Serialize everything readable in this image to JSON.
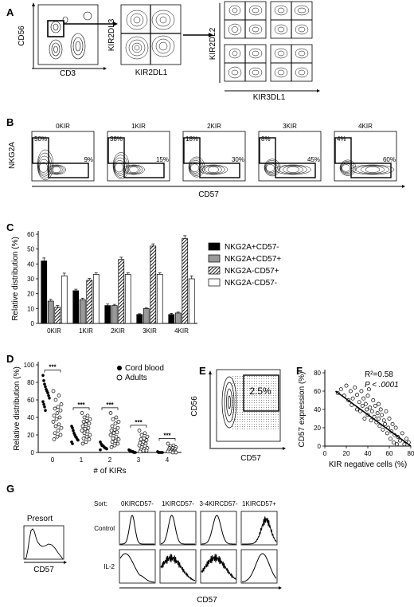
{
  "panels": {
    "A": {
      "label": "A",
      "x_label": "CD3",
      "y_label": "CD56",
      "kir_x": "KIR2DL1",
      "kir_y": "KIR2DL3",
      "ki3_x": "KIR3DL1",
      "ki3_y": "KIR2DL2"
    },
    "B": {
      "label": "B",
      "y_label": "NKG2A",
      "x_label": "CD57",
      "plots": [
        {
          "title": "0KIR",
          "ul": "50%",
          "lr": "9%"
        },
        {
          "title": "1KIR",
          "ul": "38%",
          "lr": "15%"
        },
        {
          "title": "2KIR",
          "ul": "18%",
          "lr": "30%"
        },
        {
          "title": "3KIR",
          "ul": "8%",
          "lr": "45%"
        },
        {
          "title": "4KIR",
          "ul": "4%",
          "lr": "60%"
        }
      ]
    },
    "C": {
      "label": "C"
    },
    "D": {
      "label": "D"
    },
    "E": {
      "label": "E",
      "y_label": "CD56",
      "x_label": "CD57",
      "gate": "2.5%"
    },
    "F": {
      "label": "F",
      "r2": "R²=0.58",
      "p": "P < .0001"
    },
    "G": {
      "label": "G",
      "presort": "Presort",
      "presort_x": "CD57",
      "sort_label": "Sort:",
      "sorts": [
        "0KIRCD57-",
        "1KIRCD57-",
        "3-4KIRCD57-",
        "1KIRCD57+"
      ],
      "rows": [
        "Control",
        "IL-2"
      ],
      "x_label": "CD57"
    }
  },
  "chart_data": [
    {
      "type": "bar",
      "panel": "C",
      "ylabel": "Relative distribution (%)",
      "categories": [
        "0KIR",
        "1KIR",
        "2KIR",
        "3KIR",
        "4KIR"
      ],
      "ylim": [
        0,
        60
      ],
      "yticks": [
        0,
        10,
        20,
        30,
        40,
        50,
        60
      ],
      "legend_position": "right",
      "series": [
        {
          "name": "NKG2A+CD57-",
          "values": [
            42,
            22,
            12,
            6,
            6
          ],
          "err": [
            2,
            1,
            1,
            0.5,
            0.8
          ],
          "color": "#000000",
          "pattern": "solid"
        },
        {
          "name": "NKG2A+CD57+",
          "values": [
            15,
            16,
            12,
            10,
            7
          ],
          "err": [
            1.2,
            1,
            0.8,
            0.6,
            0.6
          ],
          "color": "#999999",
          "pattern": "solid"
        },
        {
          "name": "NKG2A-CD57+",
          "values": [
            11,
            29,
            43,
            52,
            57
          ],
          "err": [
            1,
            1.2,
            1.5,
            1.5,
            2
          ],
          "color": "#000000",
          "pattern": "hatch"
        },
        {
          "name": "NKG2A-CD57-",
          "values": [
            32,
            33,
            33,
            33,
            30
          ],
          "err": [
            1.8,
            1,
            1,
            1,
            2
          ],
          "color": "#ffffff",
          "pattern": "open"
        }
      ]
    },
    {
      "type": "scatter",
      "panel": "D",
      "ylabel": "Relative distribution (%)",
      "xlabel": "# of KIRs",
      "categories": [
        "0",
        "1",
        "2",
        "3",
        "4"
      ],
      "ylim": [
        0,
        100
      ],
      "yticks": [
        0,
        20,
        40,
        60,
        80,
        100
      ],
      "significance": [
        "***",
        "***",
        "***",
        "***",
        "***"
      ],
      "legend_position": "top-right",
      "series": [
        {
          "name": "Cord blood",
          "marker": "filled",
          "values": [
            [
              88,
              82,
              78,
              75,
              72,
              70,
              68,
              65,
              62,
              58,
              55,
              52,
              48
            ],
            [
              30,
              28,
              25,
              22,
              20,
              18,
              17,
              15,
              14,
              12,
              10
            ],
            [
              12,
              10,
              8,
              8,
              7,
              6,
              5,
              5,
              4,
              3
            ],
            [
              3,
              2,
              2,
              1,
              1,
              1,
              0,
              0,
              0
            ],
            [
              1,
              0,
              0,
              0,
              0,
              0,
              0
            ]
          ]
        },
        {
          "name": "Adults",
          "marker": "open",
          "values": [
            [
              70,
              65,
              60,
              55,
              52,
              50,
              48,
              45,
              42,
              40,
              38,
              35,
              32,
              30,
              28,
              25,
              22,
              20,
              18,
              15
            ],
            [
              45,
              42,
              40,
              38,
              36,
              35,
              33,
              32,
              30,
              28,
              27,
              25,
              24,
              22,
              20,
              18,
              16,
              15,
              12,
              10
            ],
            [
              45,
              40,
              38,
              35,
              33,
              30,
              28,
              26,
              25,
              23,
              22,
              20,
              18,
              16,
              15,
              13,
              12,
              10,
              8,
              6
            ],
            [
              25,
              22,
              20,
              18,
              16,
              15,
              14,
              12,
              11,
              10,
              9,
              8,
              7,
              6,
              5,
              4,
              3,
              2,
              2,
              1
            ],
            [
              10,
              8,
              7,
              6,
              5,
              5,
              4,
              3,
              3,
              2,
              2,
              1,
              1,
              1,
              0,
              0
            ]
          ]
        }
      ]
    },
    {
      "type": "scatter",
      "panel": "F",
      "ylabel": "CD57 expression (%)",
      "xlabel": "KIR negative cells (%)",
      "xlim": [
        0,
        80
      ],
      "ylim": [
        0,
        80
      ],
      "xticks": [
        0,
        20,
        40,
        60,
        80
      ],
      "yticks": [
        0,
        20,
        40,
        60,
        80
      ],
      "fit": {
        "x": [
          10,
          80
        ],
        "y": [
          60,
          0
        ]
      },
      "points": [
        [
          12,
          58
        ],
        [
          15,
          62
        ],
        [
          18,
          55
        ],
        [
          20,
          66
        ],
        [
          22,
          50
        ],
        [
          24,
          60
        ],
        [
          25,
          45
        ],
        [
          26,
          52
        ],
        [
          28,
          64
        ],
        [
          30,
          40
        ],
        [
          30,
          56
        ],
        [
          32,
          48
        ],
        [
          33,
          38
        ],
        [
          34,
          60
        ],
        [
          35,
          44
        ],
        [
          36,
          52
        ],
        [
          37,
          30
        ],
        [
          38,
          46
        ],
        [
          39,
          40
        ],
        [
          40,
          55
        ],
        [
          40,
          34
        ],
        [
          41,
          62
        ],
        [
          42,
          42
        ],
        [
          43,
          28
        ],
        [
          44,
          38
        ],
        [
          45,
          50
        ],
        [
          46,
          32
        ],
        [
          47,
          44
        ],
        [
          48,
          26
        ],
        [
          49,
          36
        ],
        [
          50,
          30
        ],
        [
          50,
          46
        ],
        [
          51,
          22
        ],
        [
          52,
          40
        ],
        [
          53,
          34
        ],
        [
          54,
          18
        ],
        [
          55,
          28
        ],
        [
          56,
          24
        ],
        [
          57,
          38
        ],
        [
          58,
          14
        ],
        [
          59,
          20
        ],
        [
          60,
          30
        ],
        [
          61,
          8
        ],
        [
          62,
          16
        ],
        [
          63,
          24
        ],
        [
          64,
          4
        ],
        [
          65,
          12
        ],
        [
          66,
          20
        ],
        [
          67,
          2
        ],
        [
          68,
          10
        ],
        [
          70,
          6
        ],
        [
          72,
          14
        ],
        [
          74,
          2
        ],
        [
          76,
          8
        ],
        [
          78,
          4
        ]
      ]
    }
  ]
}
